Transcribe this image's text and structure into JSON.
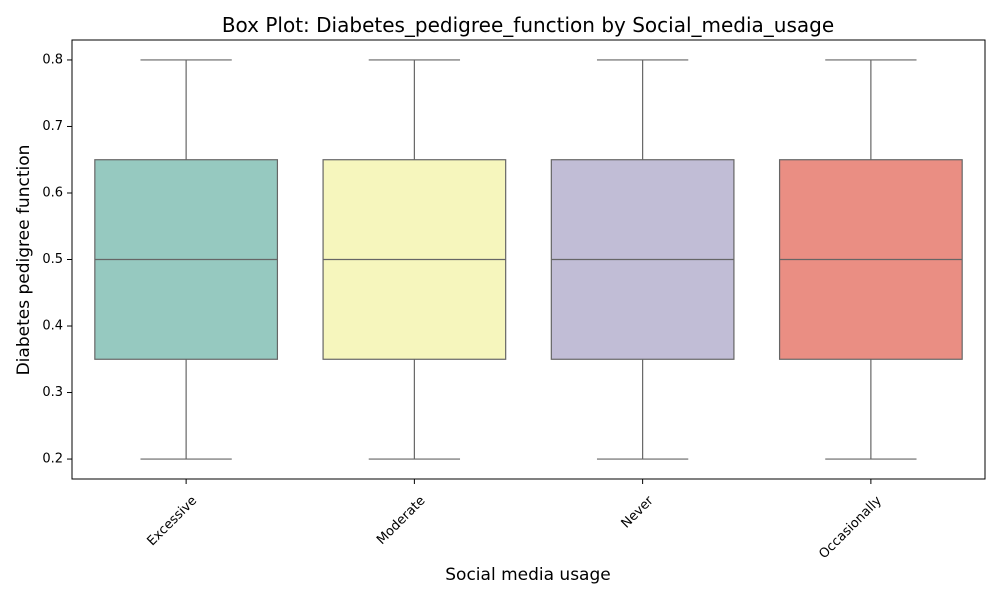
{
  "chart_data": {
    "type": "box",
    "title": "Box Plot: Diabetes_pedigree_function by Social_media_usage",
    "xlabel": "Social media usage",
    "ylabel": "Diabetes pedigree function",
    "ylim": [
      0.17,
      0.83
    ],
    "yticks": [
      "0.2",
      "0.3",
      "0.4",
      "0.5",
      "0.6",
      "0.7",
      "0.8"
    ],
    "grid": false,
    "legend": "none",
    "categories": [
      "Excessive",
      "Moderate",
      "Never",
      "Occasionally"
    ],
    "boxes": [
      {
        "category": "Excessive",
        "min": 0.2,
        "q1": 0.35,
        "median": 0.5,
        "q3": 0.65,
        "max": 0.8,
        "color": "#96c9c0"
      },
      {
        "category": "Moderate",
        "min": 0.2,
        "q1": 0.35,
        "median": 0.5,
        "q3": 0.65,
        "max": 0.8,
        "color": "#f6f6bd"
      },
      {
        "category": "Never",
        "min": 0.2,
        "q1": 0.35,
        "median": 0.5,
        "q3": 0.65,
        "max": 0.8,
        "color": "#c1bdd6"
      },
      {
        "category": "Occasionally",
        "min": 0.2,
        "q1": 0.35,
        "median": 0.5,
        "q3": 0.65,
        "max": 0.8,
        "color": "#ea8e83"
      }
    ],
    "colors": {
      "line": "#666666",
      "axis": "#000000"
    }
  }
}
